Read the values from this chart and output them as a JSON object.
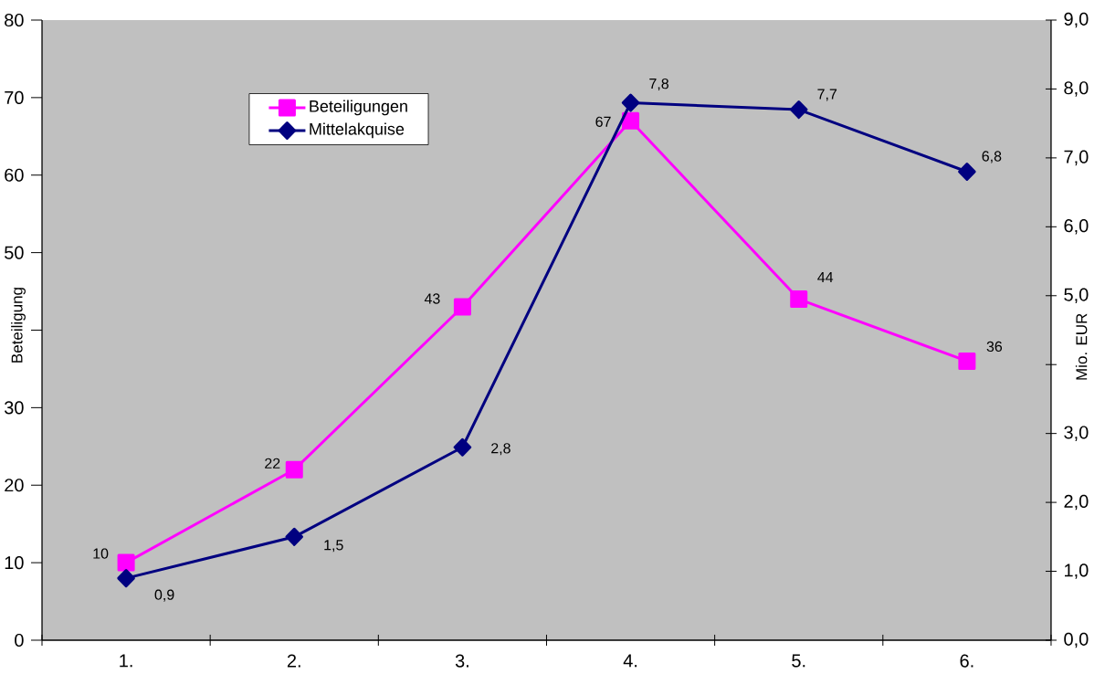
{
  "chart_data": {
    "type": "line",
    "ylabel": "Beteiligung",
    "y2label": "Mio. EUR",
    "categories": [
      "1.",
      "2.",
      "3.",
      "4.",
      "5.",
      "6."
    ],
    "series": [
      {
        "name": "Beteiligungen",
        "color": "#ff00ff",
        "marker": "square",
        "values": [
          10,
          22,
          43,
          67,
          44,
          36
        ],
        "value_labels": [
          "10",
          "22",
          "43",
          "67",
          "44",
          "36"
        ]
      },
      {
        "name": "Mittelakquise",
        "color": "#000080",
        "marker": "diamond",
        "axis": "y2",
        "values": [
          0.9,
          1.5,
          2.8,
          7.8,
          7.7,
          6.8
        ],
        "value_labels": [
          "0,9",
          "1,5",
          "2,8",
          "7,8",
          "7,7",
          "6,8"
        ]
      }
    ],
    "ylim": [
      0,
      80
    ],
    "yticks": [
      0,
      10,
      20,
      30,
      {
        "value": 40,
        "label": null
      },
      50,
      60,
      70,
      80
    ],
    "y2lim": [
      0,
      9
    ],
    "y2ticks": [
      {
        "value": 0,
        "label": "0,0"
      },
      {
        "value": 1,
        "label": "1,0"
      },
      {
        "value": 2,
        "label": "2,0"
      },
      {
        "value": 3,
        "label": "3,0"
      },
      {
        "value": 4,
        "label": null
      },
      {
        "value": 5,
        "label": "5,0"
      },
      {
        "value": 6,
        "label": "6,0"
      },
      {
        "value": 7,
        "label": "7,0"
      },
      {
        "value": 8,
        "label": "8,0"
      },
      {
        "value": 9,
        "label": "9,0"
      }
    ],
    "legend": "top left",
    "line_style": "solid"
  }
}
